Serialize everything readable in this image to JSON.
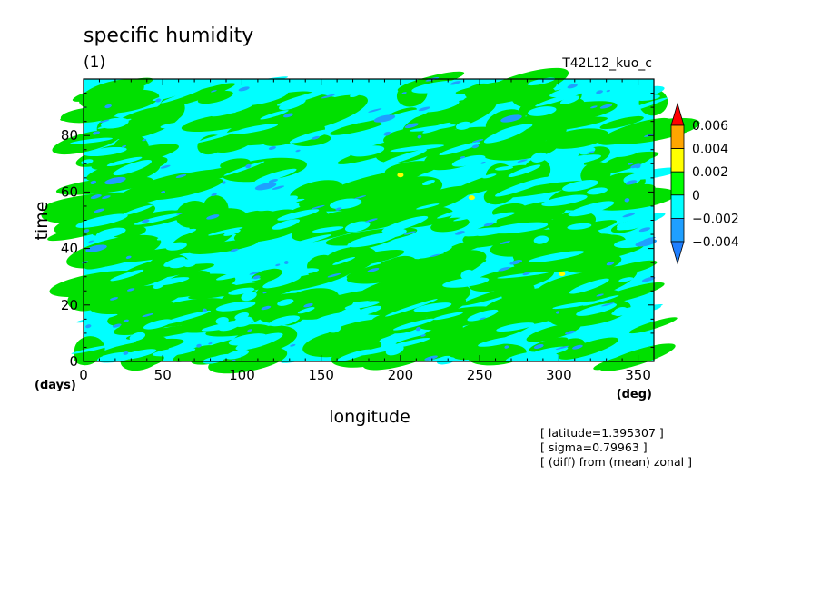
{
  "chart_data": {
    "type": "heatmap",
    "title": "specific humidity",
    "subtitle": "(1)",
    "experiment": "T42L12_kuo_c",
    "xlabel": "longitude",
    "ylabel": "time",
    "x_units": "(deg)",
    "y_units": "(days)",
    "xlim": [
      0,
      360
    ],
    "ylim": [
      0,
      100
    ],
    "x_ticks": [
      0,
      50,
      100,
      150,
      200,
      250,
      300,
      350
    ],
    "y_ticks": [
      0,
      20,
      40,
      60,
      80
    ],
    "annotations": [
      "[ latitude=1.395307 ]",
      "[ sigma=0.79963 ]",
      "[ (diff) from (mean) zonal ]"
    ],
    "colorbar": {
      "levels": [
        "-0.004",
        "-0.002",
        "0",
        "0.002",
        "0.004",
        "0.006"
      ],
      "bins": [
        {
          "range": "< -0.004",
          "color": "#1f7fff"
        },
        {
          "range": "-0.004 to -0.002",
          "color": "#1f9fff"
        },
        {
          "range": "-0.002 to 0",
          "color": "#00ffff"
        },
        {
          "range": "0 to 0.002",
          "color": "#00ff00"
        },
        {
          "range": "0.002 to 0.004",
          "color": "#ffff00"
        },
        {
          "range": "0.004 to 0.006",
          "color": "#ffa500"
        },
        {
          "range": "> 0.006",
          "color": "#ff0000"
        }
      ]
    },
    "field_description": "longitude-time Hovmoller of specific humidity deviation from zonal mean; mostly values between -0.002 and 0.002 with scattered patches below -0.002 and a few spots above 0.002",
    "dominant_colors": {
      "positive": "#00e000",
      "negative": "#00ffff",
      "strong_negative": "#1f9fff",
      "strong_positive": "#ffff00"
    },
    "extremes_positive": [
      {
        "lon": 200,
        "time": 66,
        "bin": "0.002 to 0.004"
      },
      {
        "lon": 245,
        "time": 58,
        "bin": "0.002 to 0.004"
      },
      {
        "lon": 302,
        "time": 31,
        "bin": "0.002 to 0.004"
      }
    ],
    "extremes_negative": [
      {
        "lon": 8,
        "time": 40,
        "bin": "-0.004 to -0.002"
      },
      {
        "lon": 20,
        "time": 64,
        "bin": "-0.004 to -0.002"
      },
      {
        "lon": 115,
        "time": 62,
        "bin": "-0.004 to -0.002"
      },
      {
        "lon": 190,
        "time": 86,
        "bin": "-0.004 to -0.002"
      },
      {
        "lon": 270,
        "time": 86,
        "bin": "-0.004 to -0.002"
      },
      {
        "lon": 355,
        "time": 42,
        "bin": "-0.004 to -0.002"
      }
    ]
  }
}
